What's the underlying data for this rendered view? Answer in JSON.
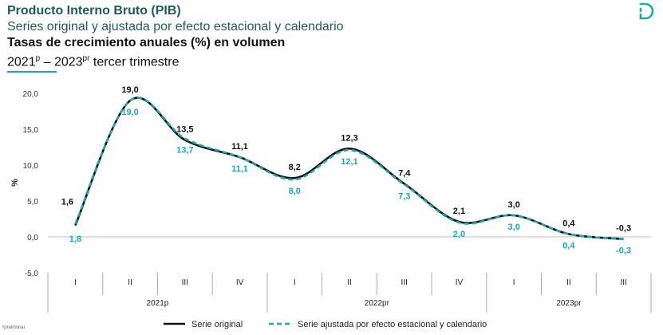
{
  "header": {
    "title": "Producto Interno Bruto (PIB)",
    "subtitle": "Series original y ajustada por efecto estacional y calendario",
    "chart_title": "Tasas de crecimiento anuales (%) en volumen",
    "period_a": "2021",
    "period_a_sup": "p",
    "period_sep": " – 2023",
    "period_b_sup": "pr",
    "period_tail": " tercer trimestre"
  },
  "footnote": "ᵖpreliminar",
  "colors": {
    "accent": "#1ba8b5",
    "original": "#111111",
    "adjusted": "#1ba8b5",
    "brand": "#1f5a5f"
  },
  "logo": {
    "icon": "dane-logo-icon"
  },
  "chart_data": {
    "type": "line",
    "ylabel": "%",
    "ylim": [
      -5,
      20
    ],
    "yticks": [
      "20,0",
      "15,0",
      "10,0",
      "5,0",
      "0,0",
      "-5,0"
    ],
    "ytick_values": [
      20,
      15,
      10,
      5,
      0,
      -5
    ],
    "categories": [
      "I",
      "II",
      "III",
      "IV",
      "I",
      "II",
      "III",
      "IV",
      "I",
      "II",
      "III"
    ],
    "groups": [
      {
        "label": "2021p",
        "count": 4
      },
      {
        "label": "2022pr",
        "count": 4
      },
      {
        "label": "2023pr",
        "count": 3
      }
    ],
    "series": [
      {
        "name": "Serie original",
        "values": [
          1.6,
          19.0,
          13.5,
          11.1,
          8.2,
          12.3,
          7.4,
          2.1,
          3.0,
          0.4,
          -0.3
        ],
        "labels": [
          "1,6",
          "19,0",
          "13,5",
          "11,1",
          "8,2",
          "12,3",
          "7,4",
          "2,1",
          "3,0",
          "0,4",
          "-0,3"
        ]
      },
      {
        "name": "Serie ajustada por efecto estacional y calendario",
        "values": [
          1.8,
          19.0,
          13.7,
          11.1,
          8.0,
          12.1,
          7.3,
          2.0,
          3.0,
          0.4,
          -0.3
        ],
        "labels": [
          "1,8",
          "19,0",
          "13,7",
          "11,1",
          "8,0",
          "12,1",
          "7,3",
          "2,0",
          "3,0",
          "0,4",
          "-0,3"
        ]
      }
    ],
    "legend_position": "bottom-center",
    "grid": false
  }
}
